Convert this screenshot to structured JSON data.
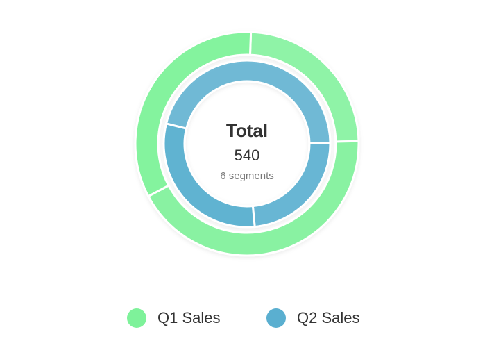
{
  "chart_data": {
    "type": "nested-donut",
    "center_label": "Total",
    "total": 540,
    "segment_note": "6 segments",
    "series": [
      {
        "name": "Q1 Sales",
        "color": "#7ef29a",
        "values": [
          65,
          115,
          90
        ]
      },
      {
        "name": "Q2 Sales",
        "color": "#5aafd0",
        "values": [
          124,
          64,
          82
        ]
      }
    ]
  }
}
